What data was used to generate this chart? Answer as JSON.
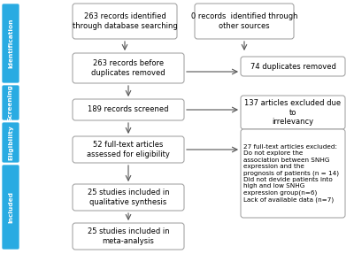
{
  "sidebar_labels": [
    "Identification",
    "Screening",
    "Eligibility",
    "Included"
  ],
  "sidebar_color": "#29ABE2",
  "box_fill": "#FFFFFF",
  "box_edge": "#999999",
  "arrow_color": "#555555",
  "font_size": 6.0,
  "elig_side_font_size": 5.2,
  "boxes": {
    "top_left": "263 records identified\nthrough database searching",
    "top_right": "0 records  identified through\nother sources",
    "dup_main": "263 records before\nduplicates removed",
    "dup_side": "74 duplicates removed",
    "screen_main": "189 records screened",
    "screen_side": "137 articles excluded due\nto\nirrelevancy",
    "elig_main": "52 full-text articles\nassessed for eligibility",
    "elig_side": "27 full-text articles excluded:\nDo not explore the\nassociation between SNHG\nexpression and the\nprognosis of patients (n = 14)\nDid not devide patients into\nhigh and low SNHG\nexpression group(n=6)\nLack of available data (n=7)",
    "qual_main": "25 studies included in\nqualitative synthesis",
    "meta_main": "25 studies included in\nmeta-analysis"
  }
}
